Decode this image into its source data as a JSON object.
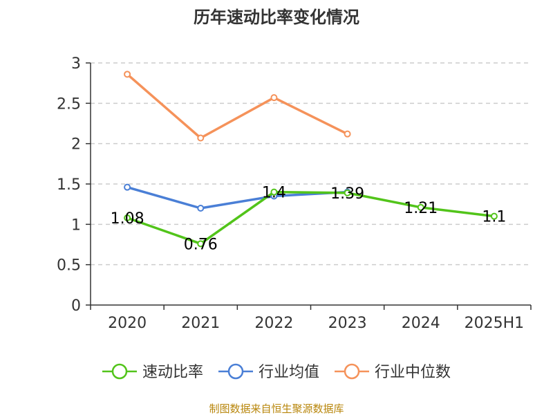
{
  "chart_data": {
    "type": "line",
    "title": "历年速动比率变化情况",
    "categories": [
      "2020",
      "2021",
      "2022",
      "2023",
      "2024",
      "2025H1"
    ],
    "ylim": [
      0,
      3
    ],
    "yticks": [
      "0",
      "0.5",
      "1",
      "1.5",
      "2",
      "2.5",
      "3"
    ],
    "grid": true,
    "legend_position": "bottom",
    "series": [
      {
        "name": "速动比率",
        "color": "#52c41a",
        "values": [
          1.08,
          0.76,
          1.4,
          1.39,
          1.21,
          1.1
        ],
        "data_labels": [
          "1.08",
          "0.76",
          "1.4",
          "1.39",
          "1.21",
          "1.1"
        ]
      },
      {
        "name": "行业均值",
        "color": "#4a7fd6",
        "values": [
          1.46,
          1.2,
          1.35,
          1.4,
          null,
          null
        ]
      },
      {
        "name": "行业中位数",
        "color": "#f5925a",
        "values": [
          2.86,
          2.07,
          2.57,
          2.12,
          null,
          null
        ]
      }
    ]
  },
  "source": "制图数据来自恒生聚源数据库"
}
